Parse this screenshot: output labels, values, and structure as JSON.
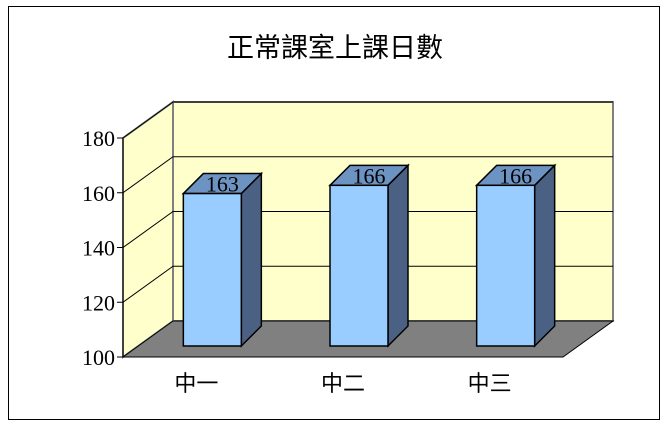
{
  "chart_data": {
    "type": "bar",
    "title": "正常課室上課日數",
    "categories": [
      "中一",
      "中二",
      "中三"
    ],
    "values": [
      163,
      166,
      166
    ],
    "data_labels": [
      "163",
      "166",
      "166"
    ],
    "ylim": [
      100,
      180
    ],
    "yticks": [
      100,
      120,
      140,
      160,
      180
    ],
    "ytick_labels": [
      "100",
      "120",
      "140",
      "160",
      "180"
    ],
    "xlabel": "",
    "ylabel": "",
    "grid": true,
    "legend": "none",
    "style": "3d-column",
    "colors": {
      "bar_front": "#99ccff",
      "bar_top": "#6d93c2",
      "bar_side": "#4b6183",
      "back_wall": "#ffffcc",
      "floor": "#808080",
      "wall_edge": "#808080"
    }
  }
}
